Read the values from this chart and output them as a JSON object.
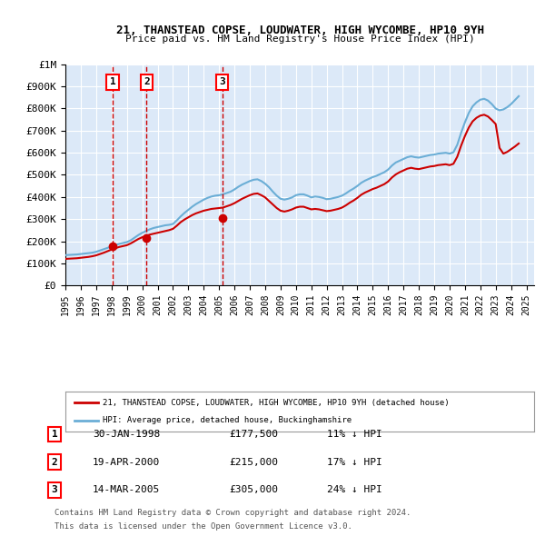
{
  "title1": "21, THANSTEAD COPSE, LOUDWATER, HIGH WYCOMBE, HP10 9YH",
  "title2": "Price paid vs. HM Land Registry's House Price Index (HPI)",
  "ylabel": "",
  "xlabel": "",
  "ylim": [
    0,
    1000000
  ],
  "xlim_start": 1995.0,
  "xlim_end": 2025.5,
  "yticks": [
    0,
    100000,
    200000,
    300000,
    400000,
    500000,
    600000,
    700000,
    800000,
    900000,
    1000000
  ],
  "ytick_labels": [
    "£0",
    "£100K",
    "£200K",
    "£300K",
    "£400K",
    "£500K",
    "£600K",
    "£700K",
    "£800K",
    "£900K",
    "£1M"
  ],
  "xticks": [
    1995,
    1996,
    1997,
    1998,
    1999,
    2000,
    2001,
    2002,
    2003,
    2004,
    2005,
    2006,
    2007,
    2008,
    2009,
    2010,
    2011,
    2012,
    2013,
    2014,
    2015,
    2016,
    2017,
    2018,
    2019,
    2020,
    2021,
    2022,
    2023,
    2024,
    2025
  ],
  "background_color": "#dce9f8",
  "plot_bg": "#dce9f8",
  "grid_color": "#ffffff",
  "hpi_color": "#6baed6",
  "price_color": "#cc0000",
  "transaction_line_color": "#cc0000",
  "transaction_dot_color": "#cc0000",
  "transactions": [
    {
      "label": "1",
      "date": "30-JAN-1998",
      "year": 1998.08,
      "price": 177500,
      "pct": "11%",
      "dir": "↓"
    },
    {
      "label": "2",
      "date": "19-APR-2000",
      "year": 2000.29,
      "price": 215000,
      "pct": "17%",
      "dir": "↓"
    },
    {
      "label": "3",
      "date": "14-MAR-2005",
      "year": 2005.2,
      "price": 305000,
      "pct": "24%",
      "dir": "↓"
    }
  ],
  "legend_line1": "21, THANSTEAD COPSE, LOUDWATER, HIGH WYCOMBE, HP10 9YH (detached house)",
  "legend_line2": "HPI: Average price, detached house, Buckinghamshire",
  "footer1": "Contains HM Land Registry data © Crown copyright and database right 2024.",
  "footer2": "This data is licensed under the Open Government Licence v3.0.",
  "hpi_data_x": [
    1995.0,
    1995.25,
    1995.5,
    1995.75,
    1996.0,
    1996.25,
    1996.5,
    1996.75,
    1997.0,
    1997.25,
    1997.5,
    1997.75,
    1998.0,
    1998.25,
    1998.5,
    1998.75,
    1999.0,
    1999.25,
    1999.5,
    1999.75,
    2000.0,
    2000.25,
    2000.5,
    2000.75,
    2001.0,
    2001.25,
    2001.5,
    2001.75,
    2002.0,
    2002.25,
    2002.5,
    2002.75,
    2003.0,
    2003.25,
    2003.5,
    2003.75,
    2004.0,
    2004.25,
    2004.5,
    2004.75,
    2005.0,
    2005.25,
    2005.5,
    2005.75,
    2006.0,
    2006.25,
    2006.5,
    2006.75,
    2007.0,
    2007.25,
    2007.5,
    2007.75,
    2008.0,
    2008.25,
    2008.5,
    2008.75,
    2009.0,
    2009.25,
    2009.5,
    2009.75,
    2010.0,
    2010.25,
    2010.5,
    2010.75,
    2011.0,
    2011.25,
    2011.5,
    2011.75,
    2012.0,
    2012.25,
    2012.5,
    2012.75,
    2013.0,
    2013.25,
    2013.5,
    2013.75,
    2014.0,
    2014.25,
    2014.5,
    2014.75,
    2015.0,
    2015.25,
    2015.5,
    2015.75,
    2016.0,
    2016.25,
    2016.5,
    2016.75,
    2017.0,
    2017.25,
    2017.5,
    2017.75,
    2018.0,
    2018.25,
    2018.5,
    2018.75,
    2019.0,
    2019.25,
    2019.5,
    2019.75,
    2020.0,
    2020.25,
    2020.5,
    2020.75,
    2021.0,
    2021.25,
    2021.5,
    2021.75,
    2022.0,
    2022.25,
    2022.5,
    2022.75,
    2023.0,
    2023.25,
    2023.5,
    2023.75,
    2024.0,
    2024.25,
    2024.5
  ],
  "hpi_data_y": [
    137000,
    138000,
    139000,
    140000,
    142000,
    144000,
    146000,
    148000,
    152000,
    158000,
    164000,
    170000,
    176000,
    182000,
    188000,
    192000,
    196000,
    204000,
    216000,
    228000,
    238000,
    246000,
    254000,
    260000,
    264000,
    268000,
    272000,
    274000,
    278000,
    294000,
    312000,
    328000,
    342000,
    356000,
    368000,
    378000,
    388000,
    396000,
    402000,
    406000,
    408000,
    412000,
    418000,
    424000,
    434000,
    446000,
    456000,
    464000,
    472000,
    478000,
    480000,
    472000,
    460000,
    444000,
    424000,
    406000,
    392000,
    388000,
    392000,
    398000,
    408000,
    412000,
    412000,
    406000,
    398000,
    402000,
    400000,
    396000,
    390000,
    392000,
    396000,
    400000,
    406000,
    416000,
    428000,
    438000,
    450000,
    464000,
    474000,
    482000,
    490000,
    496000,
    504000,
    512000,
    524000,
    542000,
    556000,
    564000,
    572000,
    580000,
    584000,
    580000,
    578000,
    582000,
    586000,
    590000,
    592000,
    596000,
    598000,
    600000,
    596000,
    602000,
    636000,
    690000,
    738000,
    780000,
    810000,
    828000,
    840000,
    844000,
    836000,
    820000,
    800000,
    792000,
    796000,
    806000,
    820000,
    838000,
    856000
  ],
  "price_data_x": [
    1995.0,
    1995.25,
    1995.5,
    1995.75,
    1996.0,
    1996.25,
    1996.5,
    1996.75,
    1997.0,
    1997.25,
    1997.5,
    1997.75,
    1998.0,
    1998.25,
    1998.5,
    1998.75,
    1999.0,
    1999.25,
    1999.5,
    1999.75,
    2000.0,
    2000.25,
    2000.5,
    2000.75,
    2001.0,
    2001.25,
    2001.5,
    2001.75,
    2002.0,
    2002.25,
    2002.5,
    2002.75,
    2003.0,
    2003.25,
    2003.5,
    2003.75,
    2004.0,
    2004.25,
    2004.5,
    2004.75,
    2005.0,
    2005.25,
    2005.5,
    2005.75,
    2006.0,
    2006.25,
    2006.5,
    2006.75,
    2007.0,
    2007.25,
    2007.5,
    2007.75,
    2008.0,
    2008.25,
    2008.5,
    2008.75,
    2009.0,
    2009.25,
    2009.5,
    2009.75,
    2010.0,
    2010.25,
    2010.5,
    2010.75,
    2011.0,
    2011.25,
    2011.5,
    2011.75,
    2012.0,
    2012.25,
    2012.5,
    2012.75,
    2013.0,
    2013.25,
    2013.5,
    2013.75,
    2014.0,
    2014.25,
    2014.5,
    2014.75,
    2015.0,
    2015.25,
    2015.5,
    2015.75,
    2016.0,
    2016.25,
    2016.5,
    2016.75,
    2017.0,
    2017.25,
    2017.5,
    2017.75,
    2018.0,
    2018.25,
    2018.5,
    2018.75,
    2019.0,
    2019.25,
    2019.5,
    2019.75,
    2020.0,
    2020.25,
    2020.5,
    2020.75,
    2021.0,
    2021.25,
    2021.5,
    2021.75,
    2022.0,
    2022.25,
    2022.5,
    2022.75,
    2023.0,
    2023.25,
    2023.5,
    2023.75,
    2024.0,
    2024.25,
    2024.5
  ],
  "price_data_y": [
    120000,
    121000,
    122000,
    123000,
    125000,
    127000,
    129000,
    132000,
    136000,
    142000,
    148000,
    155000,
    162000,
    168000,
    174000,
    178000,
    182000,
    190000,
    200000,
    210000,
    218000,
    224000,
    230000,
    234000,
    238000,
    242000,
    246000,
    250000,
    256000,
    270000,
    286000,
    298000,
    308000,
    318000,
    326000,
    332000,
    338000,
    342000,
    346000,
    348000,
    350000,
    352000,
    358000,
    364000,
    372000,
    382000,
    392000,
    400000,
    408000,
    414000,
    416000,
    408000,
    398000,
    382000,
    366000,
    350000,
    338000,
    334000,
    338000,
    344000,
    352000,
    356000,
    356000,
    350000,
    344000,
    346000,
    344000,
    340000,
    336000,
    338000,
    342000,
    346000,
    352000,
    362000,
    374000,
    384000,
    396000,
    410000,
    420000,
    428000,
    436000,
    442000,
    450000,
    458000,
    470000,
    488000,
    502000,
    512000,
    520000,
    528000,
    532000,
    528000,
    526000,
    530000,
    534000,
    538000,
    540000,
    544000,
    546000,
    548000,
    544000,
    550000,
    582000,
    632000,
    676000,
    714000,
    742000,
    758000,
    768000,
    772000,
    764000,
    748000,
    730000,
    622000,
    596000,
    604000,
    616000,
    628000,
    642000
  ]
}
